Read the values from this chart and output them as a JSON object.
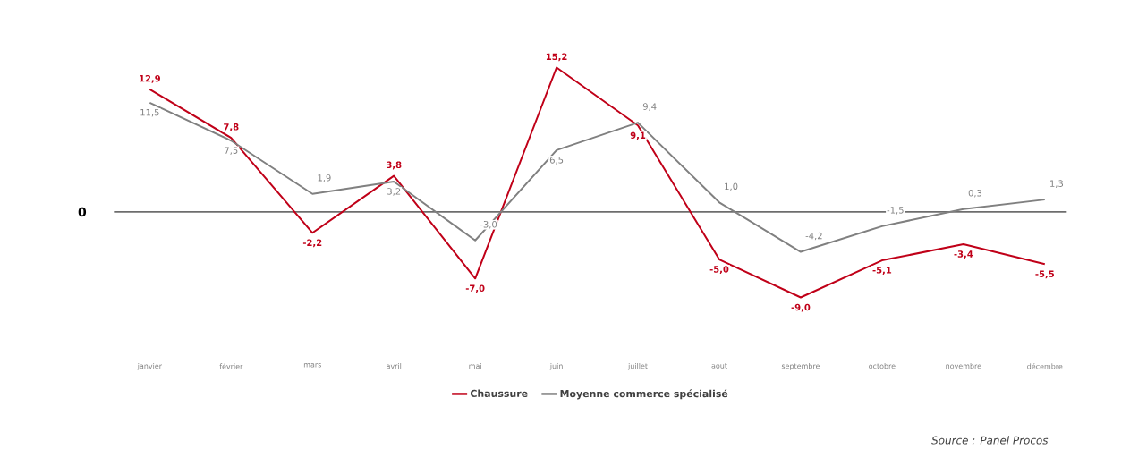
{
  "chart_data": {
    "type": "line",
    "categories": [
      "janvier",
      "février",
      "mars",
      "avril",
      "mai",
      "juin",
      "juillet",
      "aout",
      "septembre",
      "octobre",
      "novembre",
      "décembre"
    ],
    "series": [
      {
        "name": "Chaussure",
        "color": "#c00018",
        "values": [
          12.9,
          7.8,
          -2.2,
          3.8,
          -7.0,
          15.2,
          9.1,
          -5.0,
          -9.0,
          -5.1,
          -3.4,
          -5.5
        ],
        "value_labels": [
          "12,9",
          "7,8",
          "-2,2",
          "3,8",
          "-7,0",
          "15,2",
          "9,1",
          "-5,0",
          "-9,0",
          "-5,1",
          "-3,4",
          "-5,5"
        ]
      },
      {
        "name": "Moyenne commerce spécialisé",
        "color": "#808080",
        "values": [
          11.5,
          7.5,
          1.9,
          3.2,
          -3.0,
          6.5,
          9.4,
          1.0,
          -4.2,
          -1.5,
          0.3,
          1.3
        ],
        "value_labels": [
          "11,5",
          "7,5",
          "1,9",
          "3,2",
          "-3,0",
          "6,5",
          "9,4",
          "1,0",
          "-4,2",
          "-1,5",
          "0,3",
          "1,3"
        ]
      }
    ],
    "tick_labels": "x",
    "legend": "bottom",
    "marker": "none",
    "line_style": "solid",
    "ref_lines": [
      {
        "axis": "y",
        "value": 0,
        "label": "0",
        "color": "#000000"
      }
    ],
    "annotations": [
      "Source : Panel Procos"
    ]
  }
}
